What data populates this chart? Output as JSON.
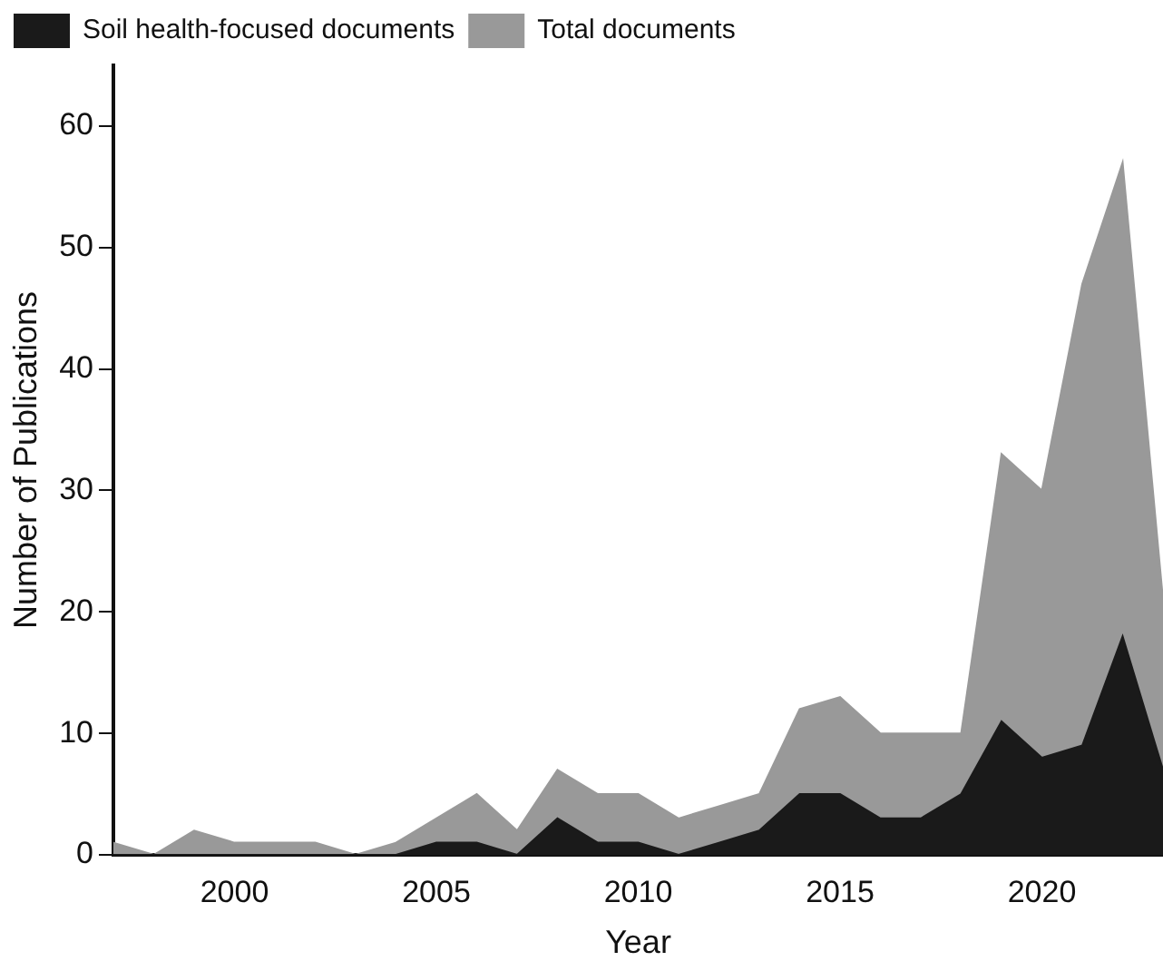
{
  "chart_data": {
    "type": "area",
    "xlabel": "Year",
    "ylabel": "Number of Publications",
    "x": [
      1997,
      1998,
      1999,
      2000,
      2001,
      2002,
      2003,
      2004,
      2005,
      2006,
      2007,
      2008,
      2009,
      2010,
      2011,
      2012,
      2013,
      2014,
      2015,
      2016,
      2017,
      2018,
      2019,
      2020,
      2021,
      2022,
      2023
    ],
    "series": [
      {
        "name": "Total documents",
        "color": "#999999",
        "values": [
          1,
          0,
          2,
          1,
          1,
          1,
          0,
          1,
          3,
          5,
          2,
          7,
          5,
          5,
          3,
          4,
          5,
          12,
          13,
          10,
          10,
          10,
          33,
          30,
          47,
          57,
          21
        ]
      },
      {
        "name": "Soil health-focused documents",
        "color": "#1a1a1a",
        "values": [
          0,
          0,
          0,
          0,
          0,
          0,
          0,
          0,
          1,
          1,
          0,
          3,
          1,
          1,
          0,
          1,
          2,
          5,
          5,
          3,
          3,
          5,
          11,
          8,
          9,
          18,
          7
        ]
      }
    ],
    "xlim": [
      1997,
      2023
    ],
    "xticks": [
      2000,
      2005,
      2010,
      2015,
      2020
    ],
    "ylim": [
      0,
      65
    ],
    "yticks": [
      0,
      10,
      20,
      30,
      40,
      50,
      60
    ],
    "grid": false,
    "legend": "top left"
  }
}
